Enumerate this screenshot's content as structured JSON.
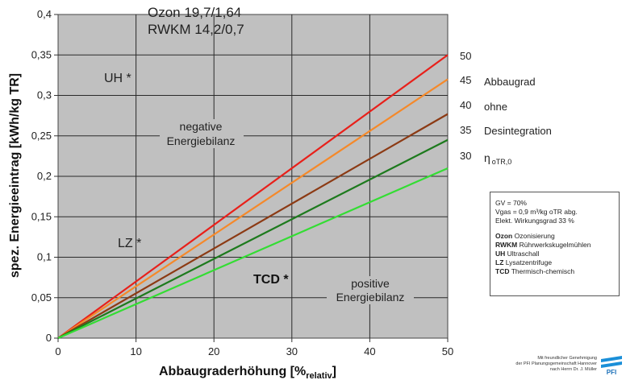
{
  "header": {
    "line1": "Ozon 19,7/1,64",
    "line2": "RWKM 14,2/0,7"
  },
  "annotations": {
    "uh": "UH *",
    "lz": "LZ *",
    "tcd": "TCD *",
    "negative_1": "negative",
    "negative_2": "Energiebilanz",
    "positive_1": "positive",
    "positive_2": "Energiebilanz"
  },
  "side_labels": {
    "abbaugrad": "Abbaugrad",
    "ohne": "ohne",
    "desintegration": "Desintegration",
    "eta": "η",
    "eta_sub": "oTR,0"
  },
  "info_box": {
    "line1": "GV = 70%",
    "line2": "Vgas = 0,9 m³/kg oTR abg.",
    "line3": "Elekt. Wirkungsgrad 33 %",
    "items": [
      {
        "key": "Ozon",
        "text": "Ozonisierung"
      },
      {
        "key": "RWKM",
        "text": "Rührwerkskugelmühlen"
      },
      {
        "key": "UH",
        "text": "Ultraschall"
      },
      {
        "key": "LZ",
        "text": "Lysatzentrifuge"
      },
      {
        "key": "TCD",
        "text": "Thermisch-chemisch"
      }
    ]
  },
  "credit": {
    "line1": "Mit freundlicher Genehmigung",
    "line2": "der PFI Planungsgemeinschaft Hannover",
    "line3": "nach Herrn Dr. J. Müller",
    "logo": "PFI"
  },
  "chart_data": {
    "type": "line",
    "xlabel": "Abbaugraderhöhung [%",
    "xlabel_sub": "relativ",
    "xlabel_end": "]",
    "ylabel": "spez. Energieeintrag [kWh/kg TR]",
    "xlim": [
      0,
      50
    ],
    "ylim": [
      0,
      0.4
    ],
    "xticks": [
      0,
      10,
      20,
      30,
      40,
      50
    ],
    "yticks": [
      0,
      0.05,
      0.1,
      0.15,
      0.2,
      0.25,
      0.3,
      0.35,
      0.4
    ],
    "ytick_labels": [
      "0",
      "0,05",
      "0,1",
      "0,15",
      "0,2",
      "0,25",
      "0,3",
      "0,35",
      "0,4"
    ],
    "grid": true,
    "series": [
      {
        "name": "50",
        "color": "#e8201a",
        "x": [
          0,
          50
        ],
        "y": [
          0,
          0.35
        ]
      },
      {
        "name": "45",
        "color": "#f5892a",
        "x": [
          0,
          50
        ],
        "y": [
          0,
          0.32
        ]
      },
      {
        "name": "40",
        "color": "#8c3a14",
        "x": [
          0,
          50
        ],
        "y": [
          0,
          0.277
        ]
      },
      {
        "name": "35",
        "color": "#1d7a1d",
        "x": [
          0,
          50
        ],
        "y": [
          0,
          0.245
        ]
      },
      {
        "name": "30",
        "color": "#33dd33",
        "x": [
          0,
          50
        ],
        "y": [
          0,
          0.21
        ]
      }
    ]
  }
}
